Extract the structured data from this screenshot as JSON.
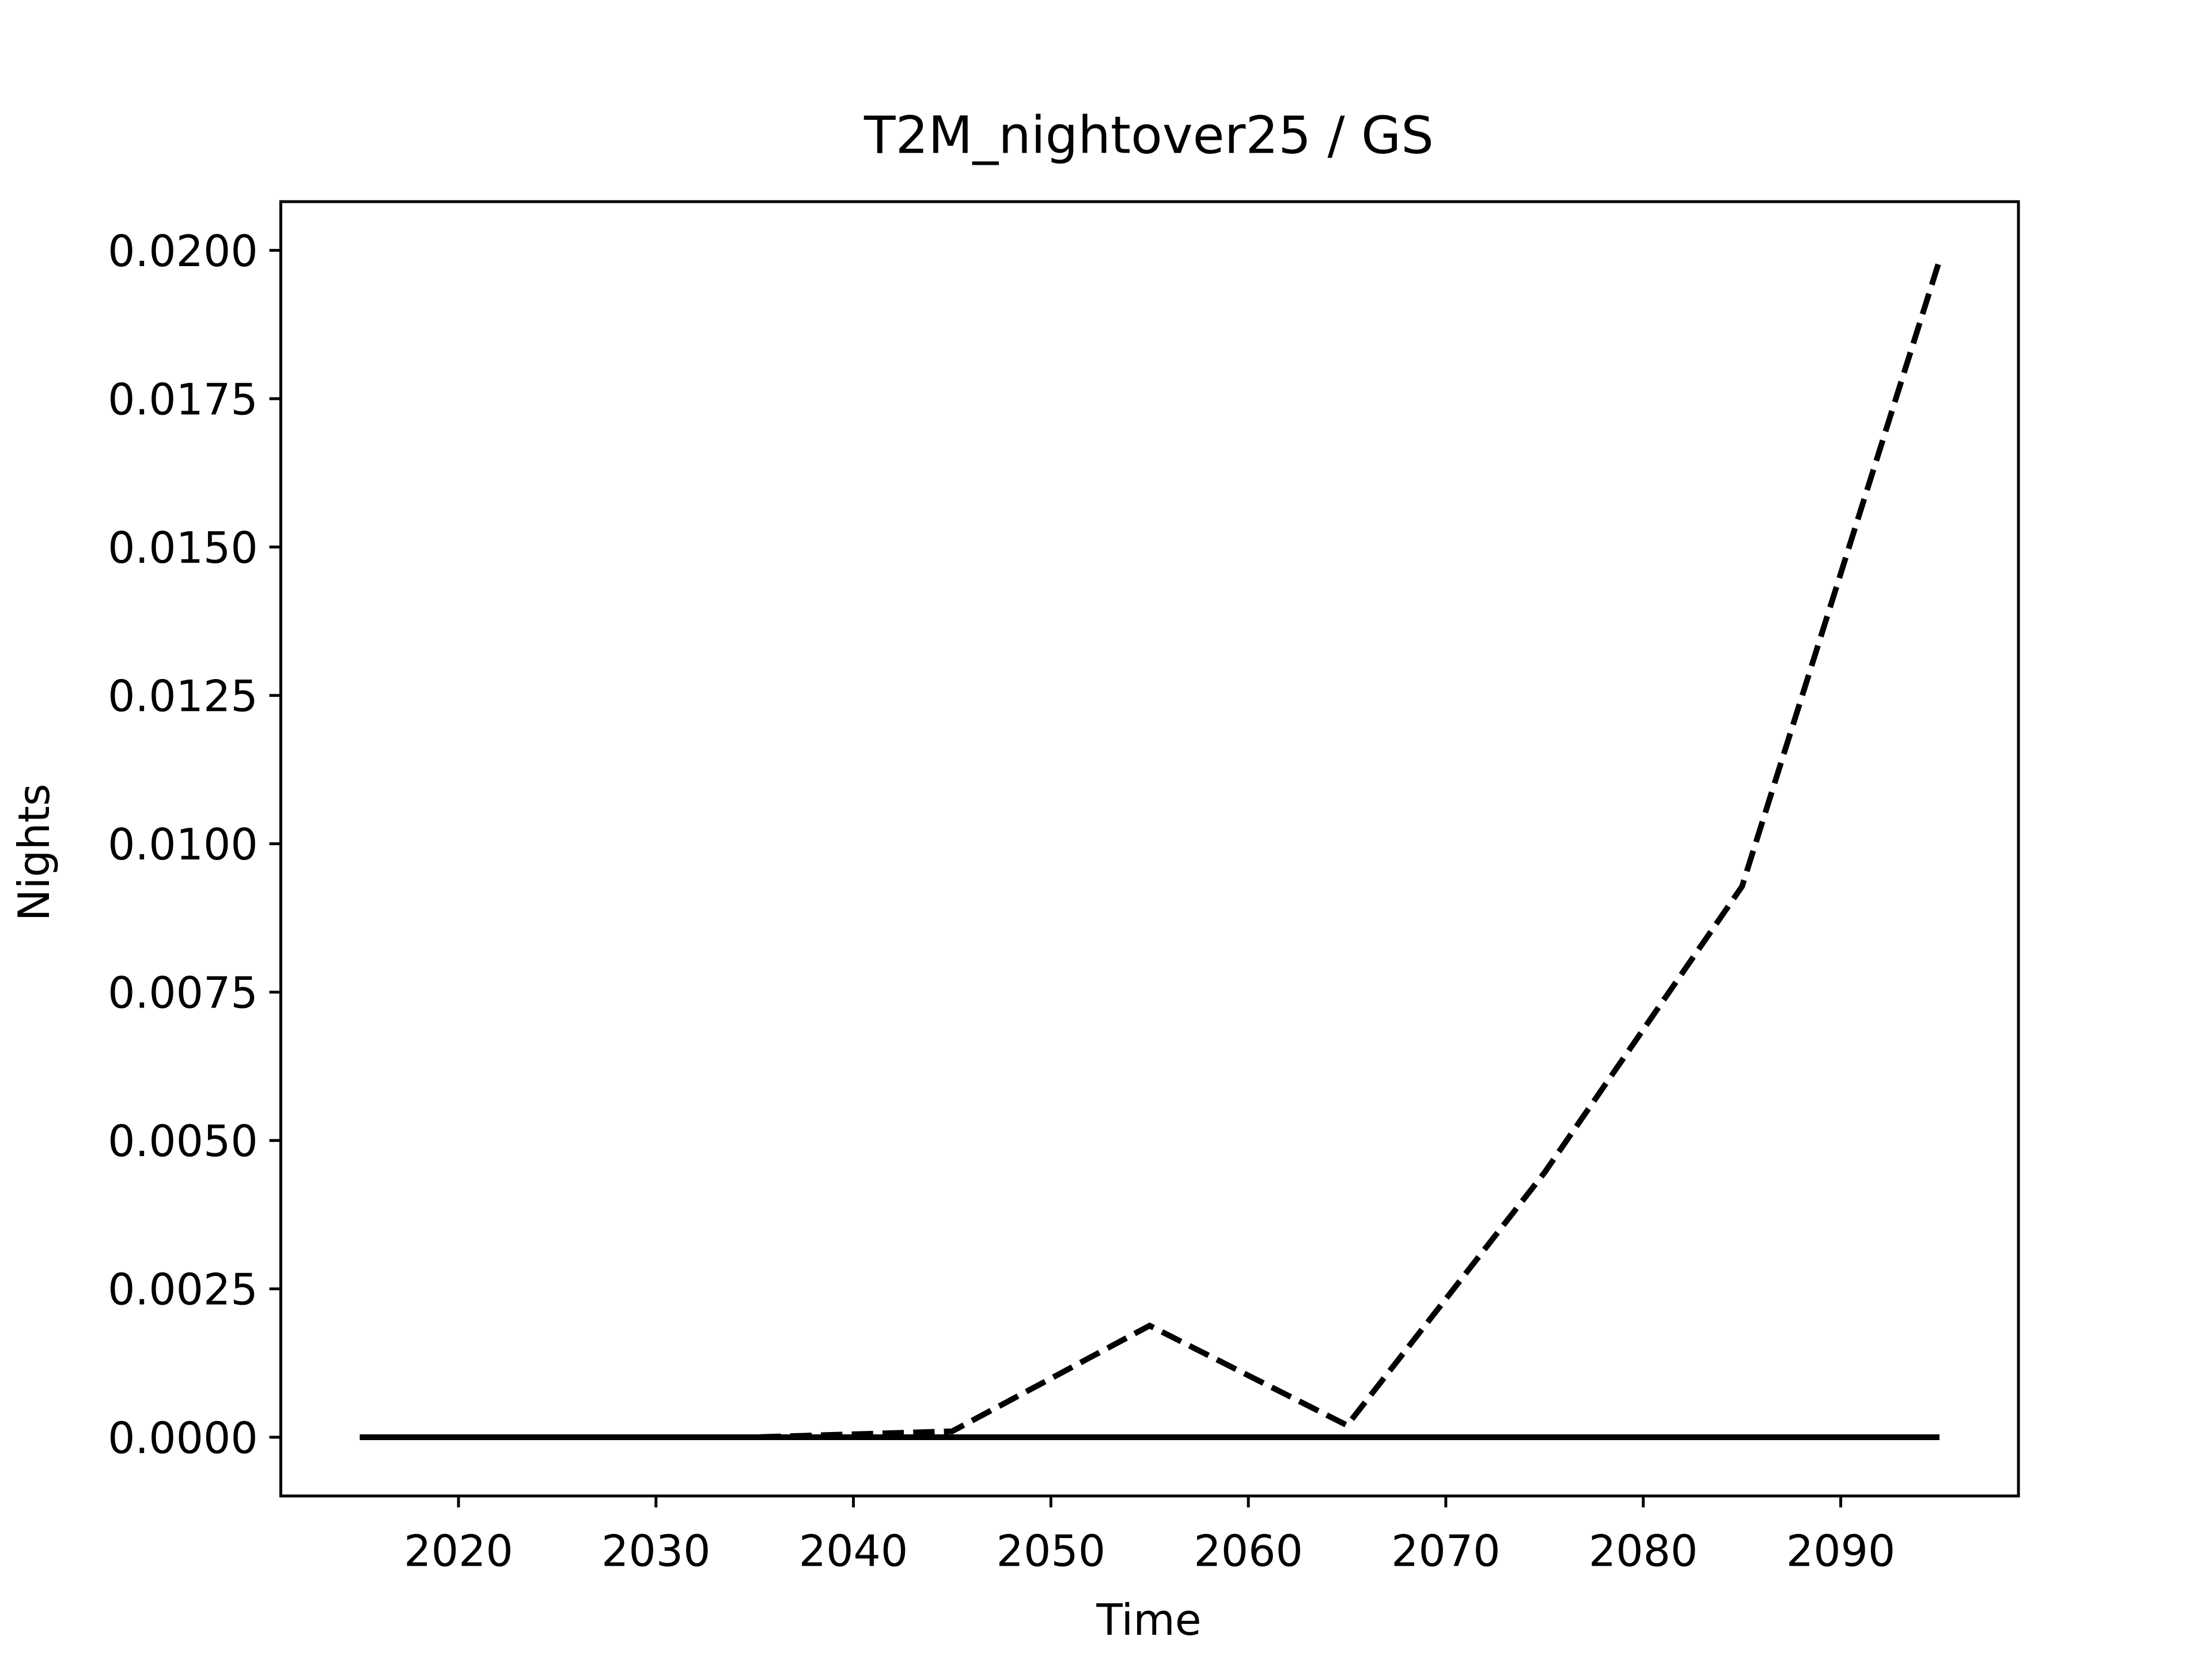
{
  "chart_data": {
    "type": "line",
    "title": "T2M_nightover25 / GS",
    "xlabel": "Time",
    "ylabel": "Nights",
    "x": [
      2015,
      2025,
      2035,
      2045,
      2055,
      2065,
      2075,
      2085,
      2095
    ],
    "series": [
      {
        "color": "#000000",
        "linestyle": "dashed",
        "values": [
          0,
          0,
          0,
          0.0001,
          0.00188,
          0.0002,
          0.00446,
          0.00928,
          0.01983
        ]
      },
      {
        "color": "#000000",
        "linestyle": "solid",
        "values": [
          0,
          0,
          0,
          0,
          0,
          0,
          0,
          0,
          0
        ]
      }
    ],
    "xlim": [
      2011,
      2099
    ],
    "ylim": [
      -0.00099,
      0.02082
    ],
    "xticks": [
      2020,
      2030,
      2040,
      2050,
      2060,
      2070,
      2080,
      2090
    ],
    "yticks": [
      {
        "value": 0,
        "label": "0.0000"
      },
      {
        "value": 0.0025,
        "label": "0.0025"
      },
      {
        "value": 0.005,
        "label": "0.0050"
      },
      {
        "value": 0.0075,
        "label": "0.0075"
      },
      {
        "value": 0.01,
        "label": "0.0100"
      },
      {
        "value": 0.0125,
        "label": "0.0125"
      },
      {
        "value": 0.015,
        "label": "0.0150"
      },
      {
        "value": 0.0175,
        "label": "0.0175"
      },
      {
        "value": 0.02,
        "label": "0.0200"
      }
    ],
    "grid": false
  }
}
